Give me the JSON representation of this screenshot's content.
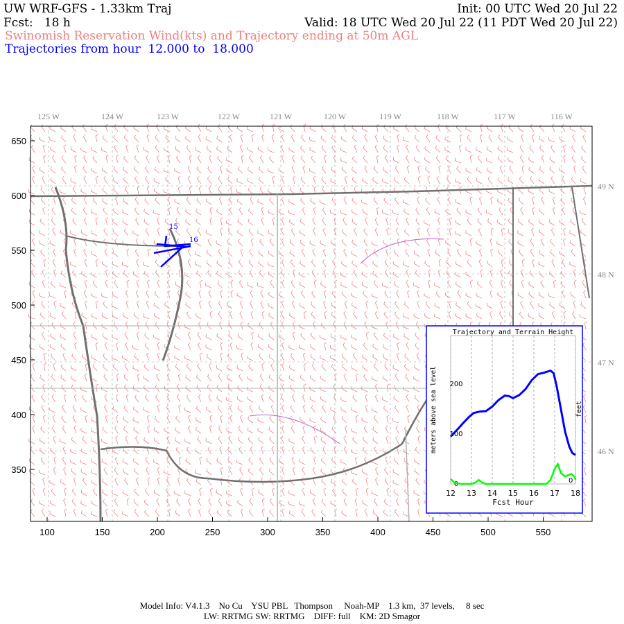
{
  "header": {
    "title": "UW WRF-GFS - 1.33km Traj",
    "init": "Init: 00 UTC Wed 20 Jul 22",
    "fcst": "Fcst:   18 h",
    "valid": "Valid: 18 UTC Wed 20 Jul 22 (11 PDT Wed 20 Jul 22)",
    "subtitle": "Swinomish Reservation Wind(kts) and Trajectory ending at 50m AGL",
    "traj_range": "Trajectories from hour  12.000 to  18.000"
  },
  "colors": {
    "wind": "#f08080",
    "trajectory": "#0000ff",
    "terrain": "#00ff00",
    "coast": "#707070",
    "borders": "#b0b0b0",
    "counties": "#c060c0"
  },
  "map": {
    "x_ticks": [
      "100",
      "150",
      "200",
      "250",
      "300",
      "350",
      "400",
      "450",
      "500",
      "550"
    ],
    "y_ticks": [
      "650",
      "600",
      "550",
      "500",
      "450",
      "400",
      "350"
    ],
    "lon_labels": [
      "125 W",
      "124 W",
      "123 W",
      "122 W",
      "121 W",
      "120 W",
      "119 W",
      "118 W",
      "117 W",
      "116 W"
    ],
    "lat_labels": [
      "49 N",
      "48 N",
      "47 N",
      "46 N"
    ],
    "traj_hour_labels": [
      "15",
      "16"
    ]
  },
  "chart_data": {
    "type": "line",
    "title": "Trajectory and Terrain Height",
    "xlabel": "Fcst Hour",
    "ylabel": "meters above sea level",
    "y2label": "feet",
    "xlim": [
      12,
      18
    ],
    "ylim": [
      0,
      260
    ],
    "x_ticks": [
      "12",
      "13",
      "14",
      "15",
      "16",
      "17",
      "18"
    ],
    "y_ticks": [
      "0",
      "100",
      "200"
    ],
    "y2_ticks": [
      "0"
    ],
    "grid": "vertical dashed",
    "series": [
      {
        "color": "#0000ff",
        "x": [
          12,
          12.3,
          12.6,
          12.9,
          13.1,
          13.4,
          13.7,
          14,
          14.3,
          14.6,
          14.8,
          15,
          15.3,
          15.6,
          15.9,
          16.2,
          16.5,
          16.8,
          16.95,
          17.1,
          17.3,
          17.5,
          17.7,
          17.85,
          18
        ],
        "y": [
          95,
          108,
          122,
          135,
          142,
          145,
          146,
          155,
          168,
          177,
          176,
          172,
          178,
          190,
          208,
          220,
          223,
          227,
          222,
          195,
          150,
          105,
          75,
          62,
          58
        ]
      },
      {
        "color": "#00ff00",
        "x": [
          12,
          12.2,
          12.5,
          13,
          13.2,
          13.35,
          13.5,
          13.7,
          14,
          15,
          16,
          16.6,
          16.8,
          17,
          17.15,
          17.3,
          17.5,
          17.8,
          17.95,
          18
        ],
        "y": [
          10,
          2,
          0,
          0,
          3,
          8,
          3,
          0,
          0,
          0,
          0,
          0,
          8,
          30,
          40,
          22,
          15,
          20,
          15,
          8
        ]
      }
    ]
  },
  "footer": {
    "line1": "Model Info: V4.1.3    No Cu    YSU PBL   Thompson     Noah-MP    1.3 km,  37 levels,     8 sec",
    "line2": "LW: RRTMG SW: RRTMG    DIFF: full    KM: 2D Smagor"
  }
}
